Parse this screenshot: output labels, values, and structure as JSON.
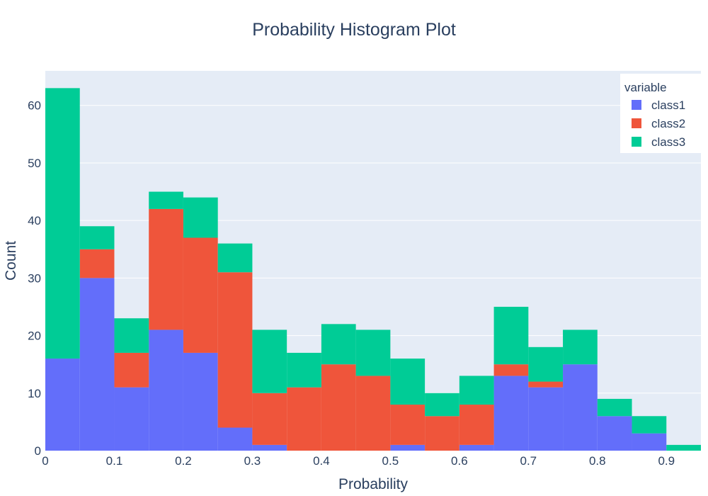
{
  "chart_data": {
    "type": "bar",
    "title": "Probability Histogram Plot",
    "xlabel": "Probability",
    "ylabel": "Count",
    "barmode": "stack",
    "bin_width": 0.05,
    "bin_starts": [
      0,
      0.05,
      0.1,
      0.15,
      0.2,
      0.25,
      0.3,
      0.35,
      0.4,
      0.45,
      0.5,
      0.55,
      0.6,
      0.65,
      0.7,
      0.75,
      0.8,
      0.85,
      0.9
    ],
    "xlim": [
      0,
      0.95
    ],
    "ylim": [
      0,
      66
    ],
    "x_ticks": [
      0,
      0.1,
      0.2,
      0.3,
      0.4,
      0.5,
      0.6,
      0.7,
      0.8,
      0.9
    ],
    "x_tick_labels": [
      "0",
      "0.1",
      "0.2",
      "0.3",
      "0.4",
      "0.5",
      "0.6",
      "0.7",
      "0.8",
      "0.9"
    ],
    "y_ticks": [
      0,
      10,
      20,
      30,
      40,
      50,
      60
    ],
    "y_tick_labels": [
      "0",
      "10",
      "20",
      "30",
      "40",
      "50",
      "60"
    ],
    "grid": true,
    "legend": {
      "title": "variable",
      "placement": "top-right"
    },
    "series": [
      {
        "name": "class1",
        "color": "#636efa",
        "values": [
          16,
          30,
          11,
          21,
          17,
          4,
          1,
          0,
          0,
          0,
          1,
          0,
          1,
          13,
          11,
          15,
          6,
          3,
          0
        ]
      },
      {
        "name": "class2",
        "color": "#ef553b",
        "values": [
          0,
          5,
          6,
          21,
          20,
          27,
          9,
          11,
          15,
          13,
          7,
          6,
          7,
          2,
          1,
          0,
          0,
          0,
          0
        ]
      },
      {
        "name": "class3",
        "color": "#00cc96",
        "values": [
          47,
          4,
          6,
          3,
          7,
          5,
          11,
          6,
          7,
          8,
          8,
          4,
          5,
          10,
          6,
          6,
          3,
          3,
          1
        ]
      }
    ],
    "plot_background": "#e5ecf6"
  }
}
